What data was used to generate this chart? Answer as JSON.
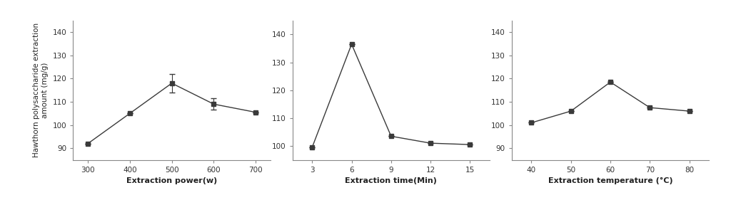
{
  "plot1": {
    "x": [
      300,
      400,
      500,
      600,
      700
    ],
    "y": [
      92,
      105,
      118,
      109,
      105.5
    ],
    "yerr": [
      0,
      0,
      4.0,
      2.5,
      0
    ],
    "xlabel": "Extraction power(w)",
    "xlim": [
      265,
      735
    ],
    "xticks": [
      300,
      400,
      500,
      600,
      700
    ],
    "ylim": [
      85,
      145
    ],
    "yticks": [
      90,
      100,
      110,
      120,
      130,
      140
    ]
  },
  "plot2": {
    "x": [
      3,
      6,
      9,
      12,
      15
    ],
    "y": [
      99.5,
      136.5,
      103.5,
      101,
      100.5
    ],
    "yerr": [
      0,
      0,
      0,
      0,
      0
    ],
    "xlabel": "Extraction time(Min)",
    "xlim": [
      1.5,
      16.5
    ],
    "xticks": [
      3,
      6,
      9,
      12,
      15
    ],
    "ylim": [
      95,
      145
    ],
    "yticks": [
      100,
      110,
      120,
      130,
      140
    ]
  },
  "plot3": {
    "x": [
      40,
      50,
      60,
      70,
      80
    ],
    "y": [
      101,
      106,
      118.5,
      107.5,
      106
    ],
    "yerr": [
      0,
      0,
      0,
      0,
      0
    ],
    "xlabel": "Extraction temperature (°C)",
    "xlim": [
      35,
      85
    ],
    "xticks": [
      40,
      50,
      60,
      70,
      80
    ],
    "ylim": [
      85,
      145
    ],
    "yticks": [
      90,
      100,
      110,
      120,
      130,
      140
    ]
  },
  "ylabel": "Hawthorn polysaccharide extraction\namount (mg/g)",
  "line_color": "#3a3a3a",
  "marker": "s",
  "markersize": 4,
  "capsize": 3,
  "linewidth": 1.0,
  "xlabel_fontsize": 8,
  "ylabel_fontsize": 7.5,
  "tick_fontsize": 7.5,
  "xlabel_fontweight": "bold"
}
